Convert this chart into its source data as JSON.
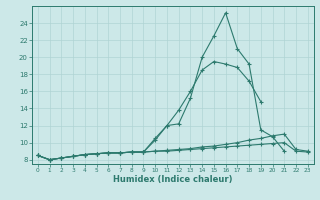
{
  "xlabel": "Humidex (Indice chaleur)",
  "bg_color": "#cce8e8",
  "grid_color": "#b0d4d4",
  "line_color": "#2d7a6e",
  "xlim": [
    -0.5,
    23.5
  ],
  "ylim": [
    7.5,
    26.0
  ],
  "yticks": [
    8,
    10,
    12,
    14,
    16,
    18,
    20,
    22,
    24
  ],
  "xticks": [
    0,
    1,
    2,
    3,
    4,
    5,
    6,
    7,
    8,
    9,
    10,
    11,
    12,
    13,
    14,
    15,
    16,
    17,
    18,
    19,
    20,
    21,
    22,
    23
  ],
  "lines": [
    {
      "x": [
        0,
        1,
        2,
        3,
        4,
        5,
        6,
        7,
        8,
        9,
        10,
        11,
        12,
        13,
        14,
        15,
        16,
        17,
        18,
        19,
        20,
        21
      ],
      "y": [
        8.5,
        8.0,
        8.2,
        8.4,
        8.6,
        8.7,
        8.8,
        8.8,
        8.9,
        8.9,
        10.3,
        12.0,
        12.2,
        15.2,
        20.0,
        22.5,
        25.2,
        21.0,
        19.2,
        11.5,
        10.7,
        9.0
      ]
    },
    {
      "x": [
        0,
        1,
        2,
        3,
        4,
        5,
        6,
        7,
        8,
        9,
        10,
        11,
        12,
        13,
        14,
        15,
        16,
        17,
        18,
        19
      ],
      "y": [
        8.5,
        8.0,
        8.2,
        8.4,
        8.6,
        8.7,
        8.8,
        8.8,
        8.9,
        8.9,
        10.5,
        12.0,
        13.8,
        16.0,
        18.5,
        19.5,
        19.2,
        18.8,
        17.2,
        14.8
      ]
    },
    {
      "x": [
        0,
        1,
        2,
        3,
        4,
        5,
        6,
        7,
        8,
        9,
        10,
        11,
        12,
        13,
        14,
        15,
        16,
        17,
        18,
        19,
        20,
        21,
        22,
        23
      ],
      "y": [
        8.5,
        8.0,
        8.2,
        8.4,
        8.6,
        8.7,
        8.8,
        8.8,
        8.9,
        8.9,
        9.0,
        9.1,
        9.2,
        9.3,
        9.5,
        9.6,
        9.8,
        10.0,
        10.3,
        10.5,
        10.8,
        11.0,
        9.2,
        9.0
      ]
    },
    {
      "x": [
        0,
        1,
        2,
        3,
        4,
        5,
        6,
        7,
        8,
        9,
        10,
        11,
        12,
        13,
        14,
        15,
        16,
        17,
        18,
        19,
        20,
        21,
        22,
        23
      ],
      "y": [
        8.5,
        8.0,
        8.2,
        8.4,
        8.6,
        8.7,
        8.8,
        8.8,
        8.9,
        8.9,
        9.0,
        9.0,
        9.1,
        9.2,
        9.3,
        9.4,
        9.5,
        9.6,
        9.7,
        9.8,
        9.9,
        10.0,
        9.0,
        8.9
      ]
    }
  ]
}
